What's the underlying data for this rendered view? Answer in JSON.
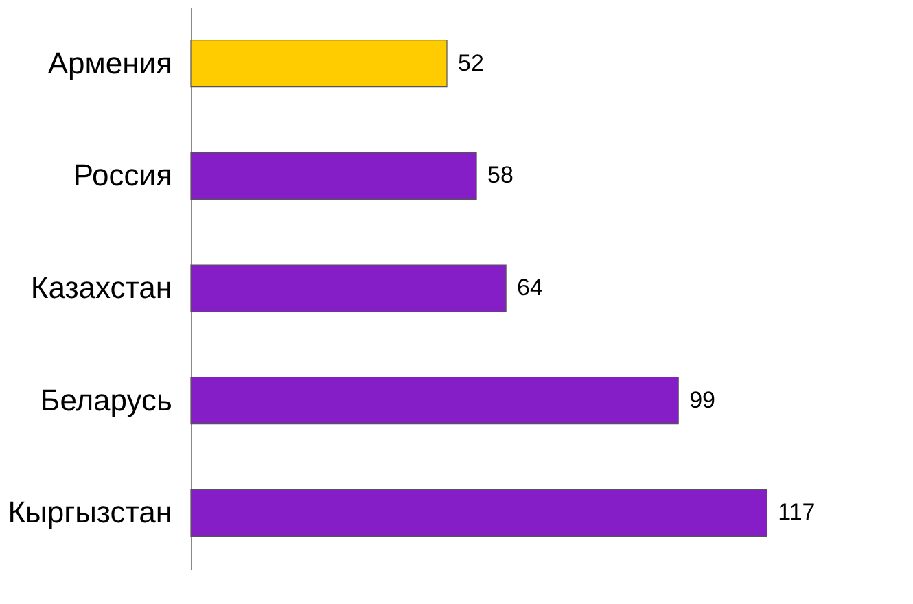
{
  "chart_data": {
    "type": "bar",
    "orientation": "horizontal",
    "categories": [
      "Армения",
      "Россия",
      "Казахстан",
      "Беларусь",
      "Кыргызстан"
    ],
    "values": [
      52,
      58,
      64,
      99,
      117
    ],
    "colors": [
      "#ffcc00",
      "#861ec8",
      "#861ec8",
      "#861ec8",
      "#861ec8"
    ],
    "data_labels": true
  }
}
